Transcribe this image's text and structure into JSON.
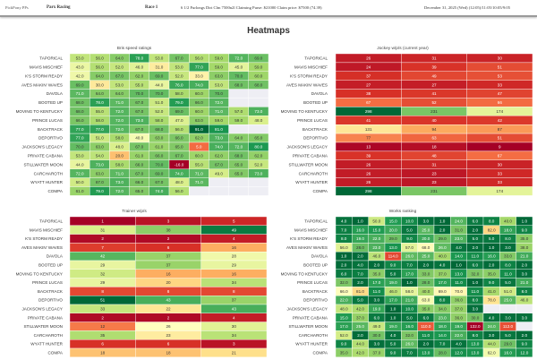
{
  "header": {
    "app_name": "PickPony PPs",
    "track": "Parx Racing",
    "race": "Race 1",
    "conditions": "6 1/2 Furlongs Dirt Clm 7500n2l Claiming Purse: $21000 Claim price: $7500 (74.39)",
    "date": "December 31, 2025 (Wed) (12:05)/11:05/10:05/9:05"
  },
  "page_title": "Heatmaps",
  "horses": [
    "TAPORICAL",
    "MAVIS MISCHIEF",
    "K'S STORM READY",
    "AVES MAKIN' WAVES",
    "DAVOLA",
    "BOOTED UP",
    "MOVING TO KENTUCKY",
    "PRINCE LUCAS",
    "BACKTRACK",
    "DEPORTIVO",
    "JACKSON'S LEGACY",
    "PRIVATE CABANA",
    "STILLWATER MOON",
    "CARCHAROTH",
    "WYATT HUNTER",
    "COMPA"
  ],
  "chart_data": [
    {
      "type": "heatmap",
      "title": "Bris speed ratings",
      "colormap": "RdYlGn",
      "decimals": 1,
      "vmin": -16,
      "vmax": 91,
      "rows": [
        "TAPORICAL",
        "MAVIS MISCHIEF",
        "K'S STORM READY",
        "AVES MAKIN' WAVES",
        "DAVOLA",
        "BOOTED UP",
        "MOVING TO KENTUCKY",
        "PRINCE LUCAS",
        "BACKTRACK",
        "DEPORTIVO",
        "JACKSON'S LEGACY",
        "PRIVATE CABANA",
        "STILLWATER MOON",
        "CARCHAROTH",
        "WYATT HUNTER",
        "COMPA"
      ],
      "values": [
        [
          53,
          56,
          64,
          78,
          53,
          67,
          56,
          59,
          72,
          69
        ],
        [
          43,
          56,
          52,
          46,
          31,
          53,
          77,
          59,
          45,
          59
        ],
        [
          42,
          64,
          67,
          62,
          69,
          52,
          33,
          63,
          70,
          60
        ],
        [
          69,
          30,
          53,
          55,
          44,
          76,
          74,
          53,
          68,
          68
        ],
        [
          71,
          64,
          64,
          70,
          70,
          58,
          60,
          70,
          null,
          null
        ],
        [
          68,
          78,
          71,
          67,
          51,
          79,
          66,
          72,
          null,
          null
        ],
        [
          68,
          55,
          72,
          67,
          52,
          69,
          60,
          71,
          57,
          73
        ],
        [
          66,
          58,
          72,
          73,
          58,
          47,
          63,
          59,
          59,
          48
        ],
        [
          77,
          77,
          72,
          67,
          68,
          56,
          91,
          81,
          null,
          null
        ],
        [
          77,
          51,
          58,
          40,
          63,
          66,
          62,
          73,
          64,
          65
        ],
        [
          70,
          63,
          48,
          67,
          61,
          65,
          5,
          74,
          72,
          80
        ],
        [
          53,
          54,
          20,
          61,
          66,
          67,
          60,
          62,
          68,
          62
        ],
        [
          44,
          73,
          58,
          66,
          70,
          -16,
          55,
          67,
          65,
          52
        ],
        [
          72,
          63,
          71,
          67,
          69,
          74,
          71,
          49,
          65,
          73
        ],
        [
          50,
          67,
          73,
          66,
          67,
          48,
          71,
          null,
          null,
          null
        ],
        [
          61,
          79,
          72,
          65,
          74,
          56,
          null,
          null,
          null,
          null
        ]
      ]
    },
    {
      "type": "heatmap",
      "title": "Jockey w/p/s (current year)",
      "colormap": "RdYlGn",
      "decimals": 0,
      "vmin": 9,
      "vmax": 298,
      "rows": [
        "TAPORICAL",
        "MAVIS MISCHIEF",
        "K'S STORM READY",
        "AVES MAKIN' WAVES",
        "DAVOLA",
        "BOOTED UP",
        "MOVING TO KENTUCKY",
        "PRINCE LUCAS",
        "BACKTRACK",
        "DEPORTIVO",
        "JACKSON'S LEGACY",
        "PRIVATE CABANA",
        "STILLWATER MOON",
        "CARCHAROTH",
        "WYATT HUNTER",
        "COMPA"
      ],
      "values": [
        [
          26,
          31,
          30
        ],
        [
          24,
          39,
          51
        ],
        [
          37,
          49,
          53
        ],
        [
          27,
          27,
          33
        ],
        [
          38,
          41,
          47
        ],
        [
          67,
          52,
          66
        ],
        [
          298,
          231,
          174
        ],
        [
          41,
          40,
          42
        ],
        [
          131,
          94,
          87
        ],
        [
          77,
          63,
          51
        ],
        [
          13,
          18,
          9
        ],
        [
          39,
          48,
          67
        ],
        [
          26,
          31,
          30
        ],
        [
          26,
          23,
          33
        ],
        [
          26,
          23,
          33
        ],
        [
          298,
          231,
          174
        ]
      ]
    },
    {
      "type": "heatmap",
      "title": "Trainer w/p/s",
      "colormap": "RdYlGn",
      "decimals": 0,
      "vmin": 1,
      "vmax": 51,
      "rows": [
        "TAPORICAL",
        "MAVIS MISCHIEF",
        "K'S STORM READY",
        "AVES MAKIN' WAVES",
        "DAVOLA",
        "BOOTED UP",
        "MOVING TO KENTUCKY",
        "PRINCE LUCAS",
        "BACKTRACK",
        "DEPORTIVO",
        "JACKSON'S LEGACY",
        "PRIVATE CABANA",
        "STILLWATER MOON",
        "CARCHAROTH",
        "WYATT HUNTER",
        "COMPA"
      ],
      "values": [
        [
          1,
          3,
          5
        ],
        [
          31,
          38,
          49
        ],
        [
          2,
          2,
          4
        ],
        [
          7,
          6,
          16
        ],
        [
          42,
          37,
          28
        ],
        [
          29,
          37,
          29
        ],
        [
          32,
          16,
          16
        ],
        [
          29,
          20,
          34
        ],
        [
          8,
          8,
          8
        ],
        [
          51,
          43,
          37
        ],
        [
          33,
          22,
          43
        ],
        [
          2,
          2,
          4
        ],
        [
          12,
          26,
          30
        ],
        [
          35,
          23,
          34
        ],
        [
          6,
          6,
          3
        ],
        [
          18,
          18,
          21
        ]
      ]
    },
    {
      "type": "heatmap",
      "title": "Works ranking",
      "colormap": "RdYlGn_r",
      "decimals": 1,
      "vmin": 1,
      "vmax": 132,
      "rows": [
        "TAPORICAL",
        "MAVIS MISCHIEF",
        "K'S STORM READY",
        "AVES MAKIN' WAVES",
        "DAVOLA",
        "BOOTED UP",
        "MOVING TO KENTUCKY",
        "PRINCE LUCAS",
        "BACKTRACK",
        "DEPORTIVO",
        "JACKSON'S LEGACY",
        "PRIVATE CABANA",
        "STILLWATER MOON",
        "CARCHAROTH",
        "WYATT HUNTER",
        "COMPA"
      ],
      "values": [
        [
          4,
          1,
          50,
          15,
          10,
          3,
          1,
          24,
          6,
          8,
          40,
          1
        ],
        [
          7,
          16,
          15,
          20,
          5,
          25,
          2,
          31,
          2,
          82,
          18,
          9
        ],
        [
          8,
          19,
          22,
          29,
          9,
          20,
          29,
          23,
          5,
          5,
          8,
          35
        ],
        [
          56,
          28,
          23,
          13,
          57,
          68,
          26,
          4,
          2,
          1,
          3,
          38
        ],
        [
          1,
          2,
          46,
          114,
          26,
          25,
          40,
          14,
          11,
          16,
          33,
          21
        ],
        [
          2,
          4,
          2,
          9,
          7,
          2,
          4,
          1,
          6,
          2,
          8,
          2
        ],
        [
          6,
          7,
          35,
          5,
          17,
          33,
          37,
          13,
          32,
          35,
          11,
          3
        ],
        [
          32,
          2,
          17,
          19,
          1,
          28,
          17,
          11,
          1,
          9,
          5,
          21
        ],
        [
          66,
          81,
          11,
          46,
          58,
          40,
          69,
          70,
          11,
          41,
          51,
          8
        ],
        [
          22,
          5,
          3,
          17,
          21,
          63,
          8,
          36,
          8,
          78,
          25,
          46
        ],
        [
          48,
          42,
          19,
          1,
          10,
          35,
          34,
          37,
          3,
          null,
          null,
          null
        ],
        [
          15,
          37,
          6,
          1,
          5,
          6,
          23,
          36,
          30,
          4,
          3,
          3
        ],
        [
          17,
          25,
          49,
          19,
          16,
          110,
          18,
          19,
          132,
          24,
          112,
          null
        ],
        [
          52,
          2,
          30,
          4,
          32,
          11,
          14,
          22,
          8,
          3,
          5,
          2
        ],
        [
          9,
          44,
          3,
          5,
          26,
          2,
          7,
          4,
          13,
          44,
          29,
          9
        ],
        [
          35,
          42,
          37,
          9,
          7,
          13,
          28,
          12,
          13,
          62,
          16,
          12
        ]
      ]
    }
  ]
}
